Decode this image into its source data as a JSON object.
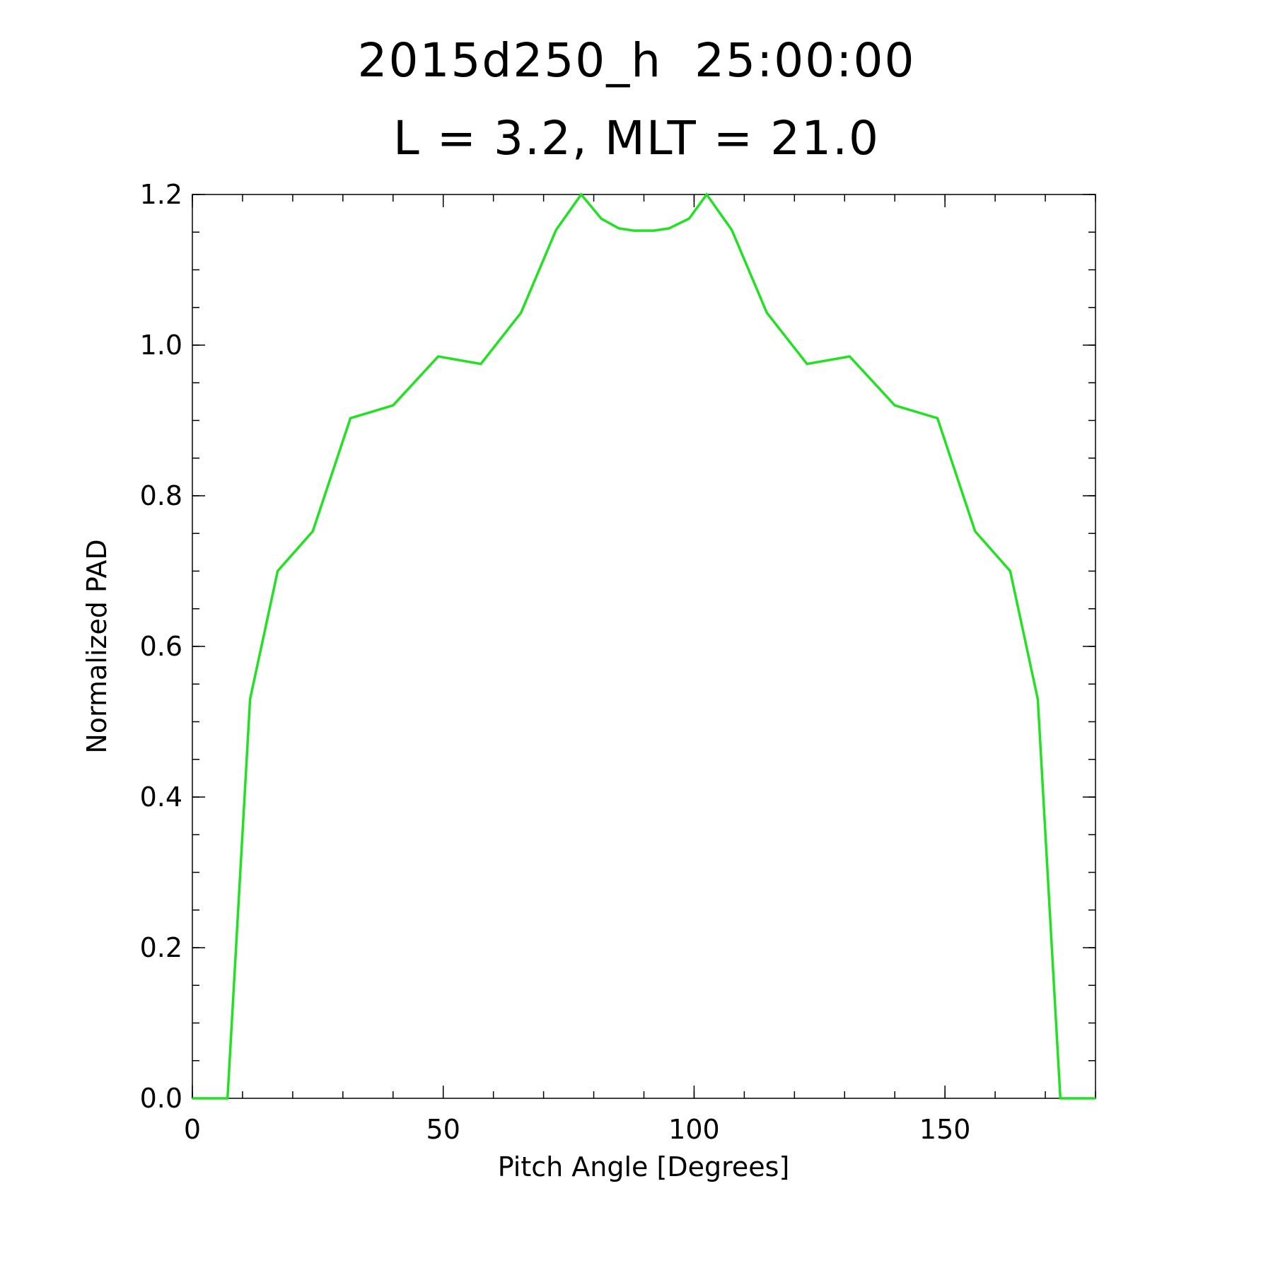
{
  "chart_data": {
    "type": "line",
    "title": "2015d250_h  25:00:00",
    "subtitle": "L = 3.2, MLT = 21.0",
    "xlabel": "Pitch Angle [Degrees]",
    "ylabel": "Normalized PAD",
    "xlim": [
      0,
      180
    ],
    "ylim": [
      0,
      1.2
    ],
    "x_ticks": [
      "0",
      "50",
      "100",
      "150"
    ],
    "x_tick_values": [
      0,
      50,
      100,
      150
    ],
    "y_ticks": [
      "0.0",
      "0.2",
      "0.4",
      "0.6",
      "0.8",
      "1.0",
      "1.2"
    ],
    "y_tick_values": [
      0,
      0.2,
      0.4,
      0.6,
      0.8,
      1.0,
      1.2
    ],
    "x_minor_step": 10,
    "y_minor_step": 0.05,
    "grid": false,
    "series": [
      {
        "color": "#22e122",
        "x": [
          0,
          7,
          11.5,
          17,
          24,
          31.5,
          40,
          49,
          57.5,
          65.5,
          72.5,
          77.5,
          81.5,
          85,
          88,
          92,
          95,
          99,
          102.5,
          107.5,
          114.5,
          122.5,
          131,
          140,
          148.5,
          156,
          163,
          168.5,
          173,
          180
        ],
        "y": [
          0,
          0,
          0.53,
          0.7,
          0.753,
          0.903,
          0.92,
          0.985,
          0.975,
          1.043,
          1.153,
          1.2,
          1.168,
          1.155,
          1.152,
          1.152,
          1.155,
          1.168,
          1.2,
          1.153,
          1.043,
          0.975,
          0.985,
          0.92,
          0.903,
          0.753,
          0.7,
          0.53,
          0,
          0
        ]
      }
    ]
  }
}
